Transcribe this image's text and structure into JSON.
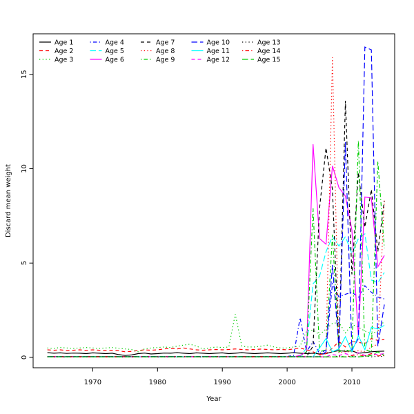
{
  "chart_data": {
    "type": "line",
    "title": "",
    "xlabel": "Year",
    "ylabel": "Discard mean weight",
    "grid": false,
    "legend_position": "top-left-inside",
    "legend_columns": 5,
    "axis": {
      "xlim": [
        1960.8,
        2016.6
      ],
      "ylim": [
        -0.55,
        17.15
      ],
      "x_ticks": [
        1970,
        1980,
        1990,
        2000,
        2010
      ],
      "y_ticks": [
        0,
        5,
        10,
        15
      ]
    },
    "colors": {
      "black": "#000000",
      "red": "#ff0000",
      "green": "#00cd00",
      "blue": "#0000ff",
      "cyan": "#00ffff",
      "magenta": "#ff00ff"
    },
    "x": [
      1963,
      1964,
      1965,
      1966,
      1967,
      1968,
      1969,
      1970,
      1971,
      1972,
      1973,
      1974,
      1975,
      1976,
      1977,
      1978,
      1979,
      1980,
      1981,
      1982,
      1983,
      1984,
      1985,
      1986,
      1987,
      1988,
      1989,
      1990,
      1991,
      1992,
      1993,
      1994,
      1995,
      1996,
      1997,
      1998,
      1999,
      2000,
      2001,
      2002,
      2003,
      2004,
      2005,
      2006,
      2007,
      2008,
      2009,
      2010,
      2011,
      2012,
      2013,
      2014,
      2015
    ],
    "series": [
      {
        "name": "Age 1",
        "color": "#000000",
        "lty": 1,
        "values": [
          0.25,
          0.22,
          0.24,
          0.21,
          0.23,
          0.22,
          0.2,
          0.24,
          0.22,
          0.2,
          0.22,
          0.15,
          0.1,
          0.13,
          0.2,
          0.23,
          0.18,
          0.2,
          0.23,
          0.22,
          0.25,
          0.22,
          0.2,
          0.24,
          0.22,
          0.2,
          0.22,
          0.24,
          0.2,
          0.22,
          0.25,
          0.22,
          0.2,
          0.22,
          0.24,
          0.22,
          0.2,
          0.22,
          0.25,
          0.22,
          0.2,
          0.22,
          0.18,
          0.2,
          0.3,
          0.36,
          0.32,
          0.35,
          0.22,
          0.25,
          0.3,
          0.32,
          0.33
        ]
      },
      {
        "name": "Age 2",
        "color": "#ff0000",
        "lty": 2,
        "values": [
          0.4,
          0.38,
          0.4,
          0.36,
          0.38,
          0.4,
          0.37,
          0.4,
          0.38,
          0.36,
          0.38,
          0.35,
          0.3,
          0.32,
          0.36,
          0.4,
          0.38,
          0.4,
          0.45,
          0.48,
          0.45,
          0.5,
          0.45,
          0.4,
          0.38,
          0.4,
          0.42,
          0.4,
          0.42,
          0.45,
          0.42,
          0.4,
          0.42,
          0.44,
          0.42,
          0.4,
          0.42,
          0.4,
          0.45,
          0.5,
          0.4,
          0.3,
          0.15,
          0.2,
          0.5,
          0.84,
          0.55,
          0.84,
          0.8,
          0.73,
          1.0,
          0.9,
          0.95
        ]
      },
      {
        "name": "Age 3",
        "color": "#00cd00",
        "lty": 3,
        "values": [
          0.5,
          0.48,
          0.52,
          0.5,
          0.48,
          0.5,
          0.52,
          0.5,
          0.48,
          0.5,
          0.52,
          0.48,
          0.45,
          0.42,
          0.3,
          0.45,
          0.5,
          0.52,
          0.55,
          0.52,
          0.6,
          0.65,
          0.7,
          0.6,
          0.45,
          0.5,
          0.55,
          0.52,
          0.55,
          2.3,
          0.6,
          0.55,
          0.55,
          0.6,
          0.65,
          0.55,
          0.5,
          0.5,
          0.55,
          0.6,
          1.4,
          1.45,
          1.2,
          1.5,
          1.8,
          1.85,
          1.3,
          1.75,
          1.6,
          1.4,
          1.25,
          1.4,
          1.95
        ]
      },
      {
        "name": "Age 4",
        "color": "#0000ff",
        "lty": 4,
        "values": [
          0.05,
          0.05,
          0.05,
          0.05,
          0.05,
          0.05,
          0.05,
          0.05,
          0.05,
          0.05,
          0.05,
          0.05,
          0.05,
          0.05,
          0.05,
          0.05,
          0.05,
          0.05,
          0.05,
          0.05,
          0.05,
          0.05,
          0.05,
          0.05,
          0.05,
          0.05,
          0.05,
          0.05,
          0.05,
          0.05,
          0.05,
          0.05,
          0.05,
          0.05,
          0.05,
          0.05,
          0.05,
          0.05,
          0.1,
          2.1,
          0.3,
          0.85,
          0.2,
          0.4,
          3.9,
          3.2,
          3.35,
          3.45,
          3.2,
          3.8,
          3.45,
          3.2,
          3.1
        ]
      },
      {
        "name": "Age 5",
        "color": "#00ffff",
        "lty": 5,
        "values": [
          0.03,
          0.03,
          0.03,
          0.03,
          0.03,
          0.03,
          0.03,
          0.03,
          0.03,
          0.03,
          0.03,
          0.03,
          0.03,
          0.03,
          0.03,
          0.03,
          0.03,
          0.03,
          0.03,
          0.03,
          0.03,
          0.03,
          0.03,
          0.03,
          0.03,
          0.03,
          0.03,
          0.03,
          0.03,
          0.03,
          0.03,
          0.03,
          0.03,
          0.03,
          0.03,
          0.03,
          0.03,
          0.03,
          0.03,
          0.03,
          0.5,
          3.9,
          4.3,
          5.6,
          6.4,
          5.9,
          6.4,
          5.5,
          6.3,
          6.55,
          4.1,
          3.95,
          4.5
        ]
      },
      {
        "name": "Age 6",
        "color": "#ff00ff",
        "lty": 1,
        "values": [
          0.03,
          0.03,
          0.03,
          0.03,
          0.03,
          0.03,
          0.03,
          0.03,
          0.03,
          0.03,
          0.03,
          0.03,
          0.03,
          0.03,
          0.03,
          0.03,
          0.03,
          0.03,
          0.03,
          0.03,
          0.03,
          0.03,
          0.03,
          0.03,
          0.03,
          0.03,
          0.03,
          0.03,
          0.03,
          0.03,
          0.03,
          0.03,
          0.03,
          0.03,
          0.03,
          0.03,
          0.03,
          0.03,
          0.03,
          0.1,
          0.3,
          11.3,
          6.3,
          6.0,
          10.15,
          9.0,
          8.55,
          6.75,
          1.1,
          8.5,
          8.45,
          4.8,
          5.4
        ]
      },
      {
        "name": "Age 7",
        "color": "#000000",
        "lty": 2,
        "values": [
          0.04,
          0.04,
          0.04,
          0.04,
          0.04,
          0.04,
          0.04,
          0.04,
          0.04,
          0.04,
          0.04,
          0.04,
          0.04,
          0.04,
          0.04,
          0.04,
          0.04,
          0.04,
          0.04,
          0.04,
          0.04,
          0.04,
          0.04,
          0.04,
          0.04,
          0.04,
          0.04,
          0.04,
          0.04,
          0.04,
          0.04,
          0.04,
          0.04,
          0.04,
          0.04,
          0.04,
          0.04,
          0.04,
          0.04,
          0.04,
          0.04,
          0.6,
          7.9,
          11.1,
          8.9,
          0.4,
          13.6,
          4.4,
          9.8,
          6.9,
          8.9,
          5.6,
          8.3
        ]
      },
      {
        "name": "Age 8",
        "color": "#ff0000",
        "lty": 3,
        "values": [
          0.05,
          0.05,
          0.05,
          0.05,
          0.05,
          0.05,
          0.05,
          0.05,
          0.05,
          0.05,
          0.05,
          0.05,
          0.05,
          0.05,
          0.05,
          0.05,
          0.05,
          0.05,
          0.05,
          0.05,
          0.05,
          0.05,
          0.05,
          0.05,
          0.05,
          0.05,
          0.05,
          0.05,
          0.05,
          0.05,
          0.05,
          0.05,
          0.05,
          0.05,
          0.05,
          0.05,
          0.05,
          0.05,
          0.05,
          0.05,
          0.05,
          0.05,
          0.05,
          0.3,
          15.9,
          0.25,
          0.3,
          0.3,
          0.35,
          0.3,
          0.55,
          0.7,
          8.4
        ]
      },
      {
        "name": "Age 9",
        "color": "#00cd00",
        "lty": 4,
        "values": [
          0.04,
          0.04,
          0.04,
          0.04,
          0.04,
          0.04,
          0.04,
          0.04,
          0.04,
          0.04,
          0.04,
          0.04,
          0.04,
          0.04,
          0.04,
          0.04,
          0.04,
          0.04,
          0.04,
          0.04,
          0.04,
          0.04,
          0.04,
          0.04,
          0.04,
          0.04,
          0.04,
          0.04,
          0.04,
          0.04,
          0.04,
          0.04,
          0.04,
          0.04,
          0.04,
          0.04,
          0.04,
          0.04,
          0.04,
          0.04,
          0.3,
          7.9,
          0.3,
          0.4,
          6.5,
          0.3,
          0.4,
          0.3,
          11.5,
          0.4,
          0.3,
          10.4,
          5.8
        ]
      },
      {
        "name": "Age 10",
        "color": "#0000ff",
        "lty": 5,
        "values": [
          0.04,
          0.04,
          0.04,
          0.04,
          0.04,
          0.04,
          0.04,
          0.04,
          0.04,
          0.04,
          0.04,
          0.04,
          0.04,
          0.04,
          0.04,
          0.04,
          0.04,
          0.04,
          0.04,
          0.04,
          0.04,
          0.04,
          0.04,
          0.04,
          0.04,
          0.04,
          0.04,
          0.04,
          0.04,
          0.04,
          0.04,
          0.04,
          0.04,
          0.04,
          0.04,
          0.04,
          0.04,
          0.04,
          0.04,
          0.04,
          0.04,
          0.04,
          0.04,
          0.3,
          4.9,
          0.5,
          11.4,
          0.4,
          1.0,
          16.45,
          16.3,
          0.6,
          2.8
        ]
      },
      {
        "name": "Age 11",
        "color": "#00ffff",
        "lty": 1,
        "values": [
          0.03,
          0.03,
          0.03,
          0.03,
          0.03,
          0.03,
          0.03,
          0.03,
          0.03,
          0.03,
          0.03,
          0.03,
          0.03,
          0.03,
          0.03,
          0.03,
          0.03,
          0.03,
          0.03,
          0.03,
          0.03,
          0.03,
          0.03,
          0.03,
          0.03,
          0.03,
          0.03,
          0.03,
          0.03,
          0.03,
          0.03,
          0.03,
          0.03,
          0.03,
          0.03,
          0.03,
          0.03,
          0.03,
          0.03,
          0.03,
          0.03,
          0.03,
          0.5,
          1.0,
          0.3,
          0.45,
          1.1,
          0.3,
          1.15,
          0.4,
          1.6,
          1.5,
          1.7
        ]
      },
      {
        "name": "Age 12",
        "color": "#ff00ff",
        "lty": 2,
        "values": [
          0.03,
          0.03,
          0.03,
          0.03,
          0.03,
          0.03,
          0.03,
          0.03,
          0.03,
          0.03,
          0.03,
          0.03,
          0.03,
          0.03,
          0.03,
          0.03,
          0.03,
          0.03,
          0.03,
          0.03,
          0.03,
          0.03,
          0.03,
          0.03,
          0.03,
          0.03,
          0.03,
          0.03,
          0.03,
          0.03,
          0.03,
          0.03,
          0.03,
          0.03,
          0.03,
          0.03,
          0.03,
          0.03,
          0.03,
          0.03,
          0.03,
          0.03,
          0.03,
          0.03,
          0.15,
          0.1,
          0.2,
          0.1,
          0.25,
          0.1,
          0.2,
          0.15,
          0.2
        ]
      },
      {
        "name": "Age 13",
        "color": "#000000",
        "lty": 3,
        "values": [
          0.02,
          0.02,
          0.02,
          0.02,
          0.02,
          0.02,
          0.02,
          0.02,
          0.02,
          0.02,
          0.02,
          0.02,
          0.02,
          0.02,
          0.02,
          0.02,
          0.02,
          0.02,
          0.02,
          0.02,
          0.02,
          0.02,
          0.02,
          0.02,
          0.02,
          0.02,
          0.02,
          0.02,
          0.02,
          0.02,
          0.02,
          0.02,
          0.02,
          0.02,
          0.02,
          0.02,
          0.02,
          0.02,
          0.02,
          0.02,
          0.02,
          0.02,
          0.02,
          0.02,
          0.02,
          0.08,
          0.02,
          0.06,
          0.02,
          0.08,
          0.03,
          0.06,
          0.05
        ]
      },
      {
        "name": "Age 14",
        "color": "#ff0000",
        "lty": 4,
        "values": [
          0.03,
          0.03,
          0.03,
          0.03,
          0.03,
          0.03,
          0.03,
          0.03,
          0.03,
          0.03,
          0.03,
          0.03,
          0.03,
          0.03,
          0.03,
          0.03,
          0.03,
          0.03,
          0.03,
          0.03,
          0.03,
          0.03,
          0.03,
          0.03,
          0.03,
          0.03,
          0.03,
          0.03,
          0.03,
          0.03,
          0.03,
          0.03,
          0.03,
          0.03,
          0.03,
          0.03,
          0.03,
          0.03,
          0.03,
          0.03,
          0.03,
          0.03,
          0.03,
          0.03,
          0.03,
          0.03,
          0.03,
          0.1,
          0.15,
          0.05,
          0.2,
          0.08,
          0.1
        ]
      },
      {
        "name": "Age 15",
        "color": "#00cd00",
        "lty": 5,
        "values": [
          0.03,
          0.03,
          0.03,
          0.03,
          0.03,
          0.03,
          0.03,
          0.03,
          0.03,
          0.03,
          0.03,
          0.03,
          0.03,
          0.03,
          0.03,
          0.03,
          0.03,
          0.03,
          0.03,
          0.03,
          0.03,
          0.03,
          0.03,
          0.03,
          0.03,
          0.03,
          0.03,
          0.03,
          0.03,
          0.03,
          0.03,
          0.03,
          0.03,
          0.03,
          0.03,
          0.03,
          0.03,
          0.03,
          0.03,
          0.03,
          0.03,
          0.03,
          0.03,
          0.03,
          0.03,
          0.03,
          0.03,
          0.03,
          0.03,
          0.05,
          0.1,
          0.3,
          0.1
        ]
      }
    ]
  }
}
